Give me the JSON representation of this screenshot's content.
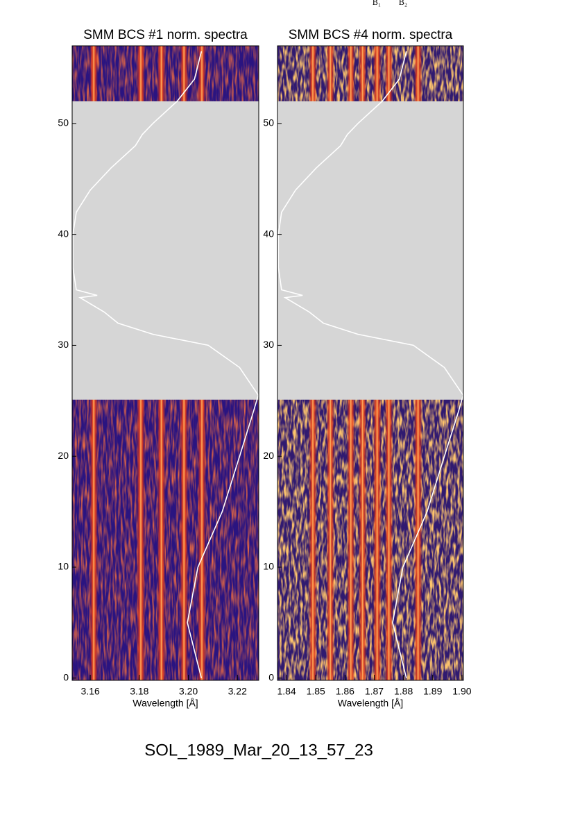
{
  "annotations": [
    "B₁",
    "B₂"
  ],
  "footer": "SOL_1989_Mar_20_13_57_23",
  "chart_data": [
    {
      "type": "heatmap",
      "title": "SMM BCS #1 norm. spectra",
      "xlabel": "Wavelength [Å]",
      "xlim": [
        3.1526,
        3.2287
      ],
      "xticks": [
        3.16,
        3.18,
        {
          "value": 3.2,
          "label": "3.20"
        },
        3.22
      ],
      "ylim": [
        -0.2,
        57.0
      ],
      "yticks": [
        0,
        10,
        20,
        30,
        40,
        50
      ],
      "gap": [
        25.1,
        52.0
      ],
      "bands": [
        3.1614,
        3.1806,
        3.189,
        3.1982,
        3.2055
      ],
      "curve_color": "#ffffff",
      "curve": {
        "y": [
          0,
          5,
          10,
          15,
          20,
          24,
          25.5,
          28,
          30,
          31,
          32,
          33,
          34.3,
          34.5,
          35,
          37,
          40,
          42,
          44,
          46,
          48,
          49,
          50,
          52,
          54,
          56.5
        ],
        "x": [
          3.2053,
          3.1996,
          3.2039,
          3.2138,
          3.2209,
          3.2265,
          3.2285,
          3.2209,
          3.2081,
          3.1855,
          3.1713,
          3.1657,
          3.1558,
          3.1628,
          3.1543,
          3.1529,
          3.1529,
          3.1543,
          3.16,
          3.1685,
          3.1784,
          3.1812,
          3.1855,
          3.1954,
          3.2025,
          3.2053
        ]
      }
    },
    {
      "type": "heatmap",
      "title": "SMM BCS #4 norm. spectra",
      "xlabel": "Wavelength [Å]",
      "xlim": [
        1.8369,
        1.9005
      ],
      "xticks": [
        1.84,
        1.85,
        1.86,
        1.87,
        1.88,
        1.89,
        {
          "value": 1.9,
          "label": "1.90"
        }
      ],
      "ylim": [
        -0.2,
        57.0
      ],
      "yticks": [
        0,
        10,
        20,
        30,
        40,
        50
      ],
      "gap": [
        25.1,
        52.0
      ],
      "bands": [
        1.849,
        1.855,
        1.862,
        1.866,
        1.871,
        1.875,
        1.885
      ],
      "curve_color": "#ffffff",
      "curve": {
        "y": [
          0,
          5,
          10,
          15,
          20,
          24,
          25.5,
          28,
          30,
          31,
          32,
          33,
          34.3,
          34.5,
          35,
          37,
          40,
          42,
          44,
          46,
          48,
          49,
          50,
          52,
          54,
          56.5
        ],
        "x": [
          1.881,
          1.8763,
          1.8798,
          1.8881,
          1.894,
          1.8988,
          1.9004,
          1.894,
          1.8834,
          1.8644,
          1.8526,
          1.8478,
          1.8395,
          1.8455,
          1.8383,
          1.8372,
          1.8372,
          1.8383,
          1.8431,
          1.8502,
          1.8585,
          1.8608,
          1.8644,
          1.8727,
          1.8786,
          1.881
        ]
      }
    }
  ]
}
